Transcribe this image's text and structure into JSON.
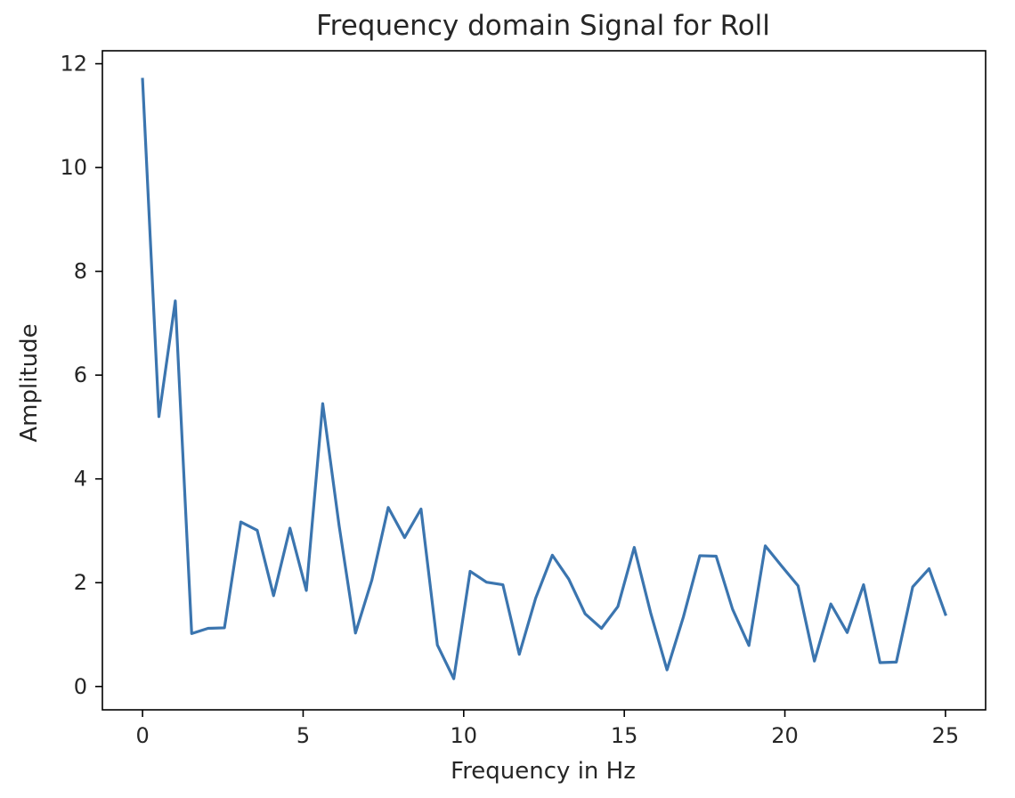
{
  "chart_data": {
    "type": "line",
    "title": "Frequency domain Signal for Roll",
    "xlabel": "Frequency in Hz",
    "ylabel": "Amplitude",
    "xlim": [
      -1.25,
      26.25
    ],
    "ylim": [
      -0.45,
      12.25
    ],
    "xticks": [
      0,
      5,
      10,
      15,
      20,
      25
    ],
    "yticks": [
      0,
      2,
      4,
      6,
      8,
      10,
      12
    ],
    "grid": false,
    "legend": "none",
    "series": [
      {
        "color": "#3b75af",
        "x": [
          0,
          0.51,
          1.02,
          1.53,
          2.04,
          2.55,
          3.06,
          3.57,
          4.08,
          4.59,
          5.1,
          5.61,
          6.12,
          6.63,
          7.14,
          7.65,
          8.16,
          8.67,
          9.18,
          9.69,
          10.2,
          10.71,
          11.22,
          11.73,
          12.24,
          12.76,
          13.27,
          13.78,
          14.29,
          14.8,
          15.31,
          15.82,
          16.33,
          16.84,
          17.35,
          17.86,
          18.37,
          18.88,
          19.39,
          19.9,
          20.41,
          20.92,
          21.43,
          21.94,
          22.45,
          22.96,
          23.47,
          23.98,
          24.49,
          25.0
        ],
        "y": [
          11.7,
          5.2,
          7.43,
          1.02,
          1.12,
          1.13,
          3.17,
          3.01,
          1.75,
          3.05,
          1.85,
          5.45,
          3.1,
          1.03,
          2.05,
          3.45,
          2.87,
          3.42,
          0.8,
          0.15,
          2.22,
          2.01,
          1.96,
          0.62,
          1.7,
          2.53,
          2.07,
          1.4,
          1.12,
          1.54,
          2.68,
          1.42,
          0.32,
          1.34,
          2.52,
          2.51,
          1.49,
          0.79,
          2.71,
          2.32,
          1.94,
          0.49,
          1.59,
          1.04,
          1.96,
          0.46,
          0.47,
          1.92,
          2.27,
          1.39
        ]
      }
    ]
  }
}
